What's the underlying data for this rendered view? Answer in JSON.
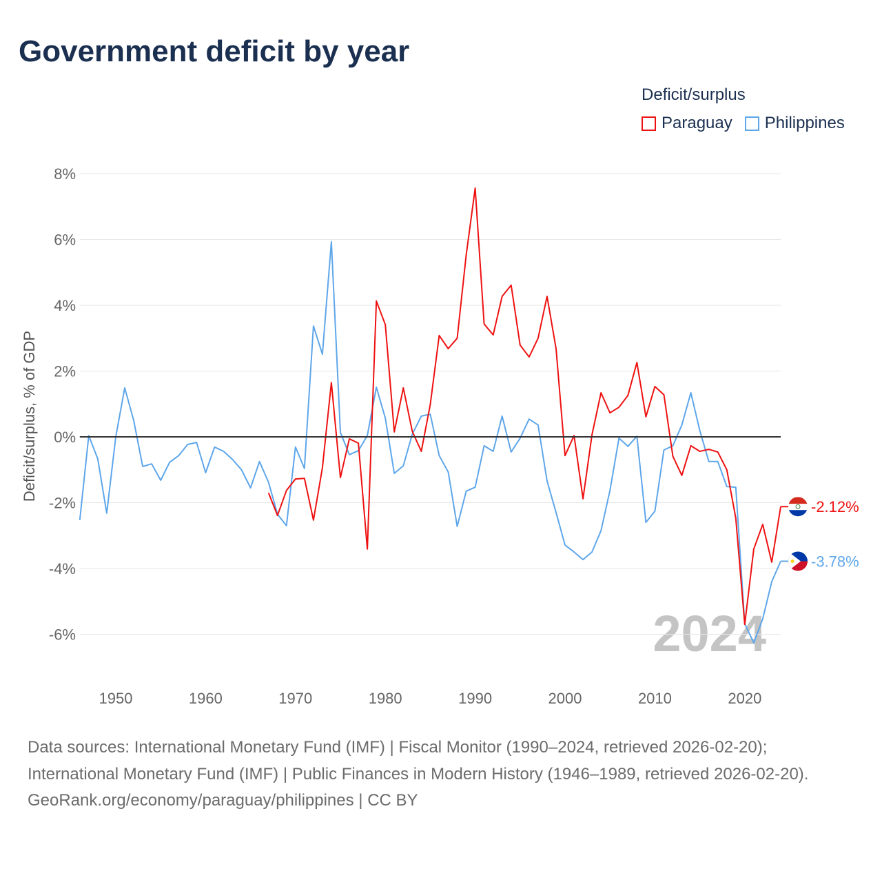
{
  "chart_data": {
    "type": "line",
    "title": "Government deficit by year",
    "ylabel": "Deficit/surplus, % of GDP",
    "xlabel": "",
    "legend_title": "Deficit/surplus",
    "legend_position": "top-right",
    "xlim": [
      1946,
      2024
    ],
    "ylim": [
      -7,
      8
    ],
    "yticks": [
      8,
      6,
      4,
      2,
      0,
      -2,
      -4,
      -6
    ],
    "ytick_labels": [
      "8%",
      "6%",
      "4%",
      "2%",
      "0%",
      "-2%",
      "-4%",
      "-6%"
    ],
    "xticks": [
      1950,
      1960,
      1970,
      1980,
      1990,
      2000,
      2010,
      2020
    ],
    "xtick_labels": [
      "1950",
      "1960",
      "1970",
      "1980",
      "1990",
      "2000",
      "2010",
      "2020"
    ],
    "grid": true,
    "current_year_label": "2024",
    "series": [
      {
        "name": "Paraguay",
        "color": "#ee1111",
        "end_label": "-2.12%",
        "start_year": 1967,
        "values": [
          -1.7,
          -2.39,
          -1.63,
          -1.28,
          -1.26,
          -2.53,
          -0.94,
          1.65,
          -1.24,
          -0.06,
          -0.19,
          -3.41,
          4.13,
          3.41,
          0.15,
          1.49,
          0.17,
          -0.44,
          0.98,
          3.08,
          2.68,
          3.0,
          5.53,
          7.56,
          3.43,
          3.1,
          4.27,
          4.61,
          2.79,
          2.43,
          3.0,
          4.27,
          2.68,
          -0.57,
          0.04,
          -1.88,
          0.06,
          1.34,
          0.73,
          0.9,
          1.26,
          2.26,
          0.61,
          1.53,
          1.28,
          -0.59,
          -1.17,
          -0.27,
          -0.44,
          -0.38,
          -0.46,
          -1.0,
          -2.47,
          -5.7,
          -3.41,
          -2.66,
          -3.81,
          -2.12
        ]
      },
      {
        "name": "Philippines",
        "color": "#5ea6ea",
        "end_label": "-3.78%",
        "start_year": 1946,
        "values": [
          -2.53,
          0.04,
          -0.67,
          -2.32,
          0.0,
          1.49,
          0.5,
          -0.9,
          -0.82,
          -1.32,
          -0.77,
          -0.57,
          -0.23,
          -0.17,
          -1.09,
          -0.31,
          -0.44,
          -0.69,
          -1.0,
          -1.55,
          -0.75,
          -1.38,
          -2.35,
          -2.7,
          -0.31,
          -0.96,
          3.37,
          2.51,
          5.93,
          0.13,
          -0.54,
          -0.42,
          0.04,
          1.51,
          0.57,
          -1.11,
          -0.88,
          0.08,
          0.63,
          0.69,
          -0.57,
          -1.07,
          -2.72,
          -1.65,
          -1.53,
          -0.27,
          -0.44,
          0.63,
          -0.46,
          -0.04,
          0.54,
          0.36,
          -1.34,
          -2.3,
          -3.29,
          -3.5,
          -3.73,
          -3.5,
          -2.85,
          -1.63,
          -0.04,
          -0.29,
          0.02,
          -2.6,
          -2.26,
          -0.4,
          -0.27,
          0.36,
          1.34,
          0.19,
          -0.75,
          -0.75,
          -1.51,
          -1.53,
          -5.68,
          -6.26,
          -5.53,
          -4.4,
          -3.78
        ]
      }
    ]
  },
  "footer": {
    "sources": "Data sources: International Monetary Fund (IMF) | Fiscal Monitor (1990–2024, retrieved 2026-02-20); International Monetary Fund (IMF) | Public Finances in Modern History (1946–1989, retrieved 2026-02-20).",
    "credit": "GeoRank.org/economy/paraguay/philippines | CC BY"
  }
}
